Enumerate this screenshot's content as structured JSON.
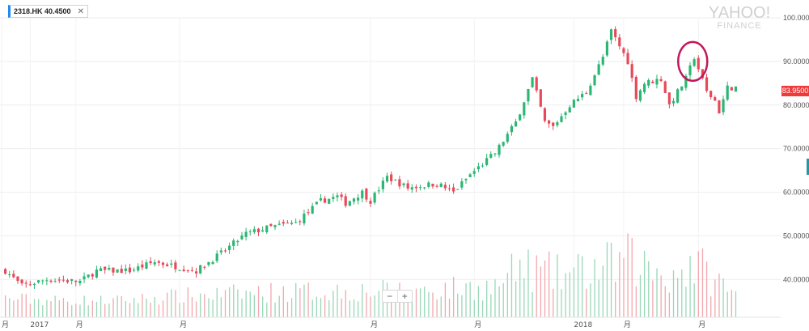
{
  "ticker": {
    "label": "2318.HK  40.4500",
    "close_symbol": "✕"
  },
  "brand": {
    "line1": "YAHOO!",
    "line2": "FINANCE"
  },
  "current_price_label": "83.9500",
  "zoom": {
    "minus": "−",
    "plus": "+"
  },
  "colors": {
    "up": "#2bb673",
    "down": "#e8495a",
    "annotation": "#c2185b",
    "grid": "#eeeeee",
    "axis_text": "#555555"
  },
  "chart_data": {
    "type": "candlestick",
    "series_name": "2318.HK",
    "ylim": [
      33,
      100
    ],
    "y_ticks": [
      {
        "value": 100,
        "label": "100.0000"
      },
      {
        "value": 90,
        "label": "90.0000"
      },
      {
        "value": 80,
        "label": "80.0000"
      },
      {
        "value": 70,
        "label": "70.0000"
      },
      {
        "value": 60,
        "label": "60.0000"
      },
      {
        "value": 50,
        "label": "50.0000"
      },
      {
        "value": 40,
        "label": "40.0000"
      }
    ],
    "x_ticks": [
      {
        "index": 0,
        "label": "月"
      },
      {
        "index": 6,
        "label": "2017"
      },
      {
        "index": 17,
        "label": "月"
      },
      {
        "index": 42,
        "label": "月"
      },
      {
        "index": 88,
        "label": "月"
      },
      {
        "index": 113,
        "label": "月"
      },
      {
        "index": 137,
        "label": "2018"
      },
      {
        "index": 149,
        "label": "月"
      },
      {
        "index": 167,
        "label": "月"
      }
    ],
    "current_price": 83.95,
    "close_anchors": [
      [
        0,
        42
      ],
      [
        4,
        38.5
      ],
      [
        10,
        40
      ],
      [
        18,
        39.5
      ],
      [
        22,
        42
      ],
      [
        30,
        42
      ],
      [
        36,
        44
      ],
      [
        46,
        42
      ],
      [
        52,
        46
      ],
      [
        58,
        50.5
      ],
      [
        64,
        52
      ],
      [
        70,
        53
      ],
      [
        76,
        58
      ],
      [
        80,
        59
      ],
      [
        82,
        57.5
      ],
      [
        86,
        60
      ],
      [
        88,
        58
      ],
      [
        92,
        63.5
      ],
      [
        97,
        61
      ],
      [
        104,
        62
      ],
      [
        108,
        60
      ],
      [
        112,
        64
      ],
      [
        118,
        69
      ],
      [
        123,
        76
      ],
      [
        127,
        86
      ],
      [
        130,
        76
      ],
      [
        132,
        75
      ],
      [
        136,
        80
      ],
      [
        140,
        83
      ],
      [
        144,
        91
      ],
      [
        146,
        97
      ],
      [
        150,
        90
      ],
      [
        152,
        82
      ],
      [
        154,
        85
      ],
      [
        158,
        86
      ],
      [
        160,
        80
      ],
      [
        164,
        86
      ],
      [
        166,
        91
      ],
      [
        169,
        83
      ],
      [
        171,
        81
      ],
      [
        172,
        78.5
      ],
      [
        174,
        84
      ],
      [
        176,
        84
      ]
    ],
    "volume_anchors": [
      [
        0,
        3
      ],
      [
        12,
        2.5
      ],
      [
        28,
        2.5
      ],
      [
        40,
        3.5
      ],
      [
        60,
        4.5
      ],
      [
        80,
        5
      ],
      [
        95,
        5
      ],
      [
        118,
        6
      ],
      [
        124,
        11
      ],
      [
        134,
        9
      ],
      [
        144,
        11
      ],
      [
        150,
        13
      ],
      [
        160,
        9
      ],
      [
        166,
        12
      ],
      [
        176,
        4
      ]
    ],
    "highlight": {
      "index": 167,
      "label": "spike annotation"
    }
  }
}
